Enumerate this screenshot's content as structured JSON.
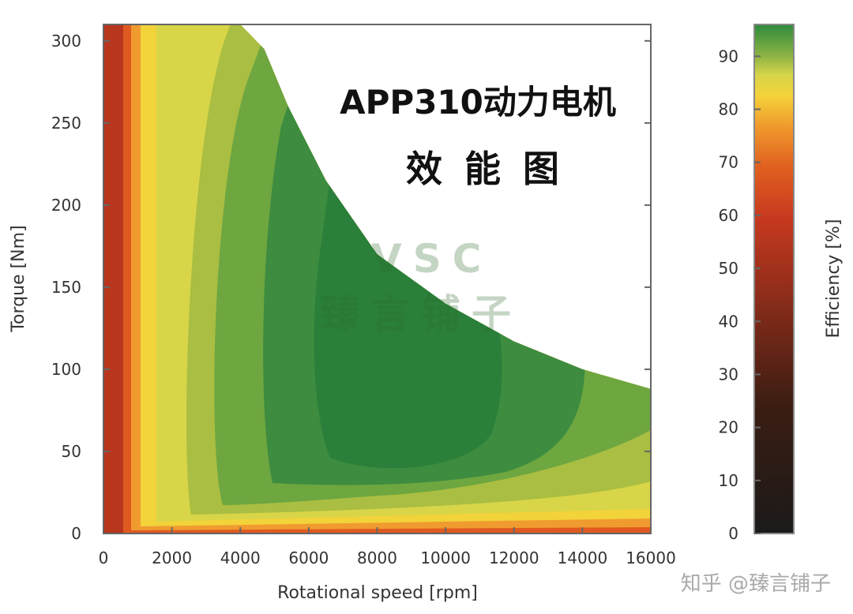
{
  "chart_data": {
    "type": "heatmap",
    "title_line1": "APP310动力电机",
    "title_line2": "效能图",
    "xlabel": "Rotational speed [rpm]",
    "ylabel": "Torque [Nm]",
    "xlim": [
      0,
      16000
    ],
    "ylim": [
      0,
      310
    ],
    "xticks": [
      "0",
      "2000",
      "4000",
      "6000",
      "8000",
      "10000",
      "12000",
      "14000",
      "16000"
    ],
    "yticks": [
      "0",
      "50",
      "100",
      "150",
      "200",
      "250",
      "300"
    ],
    "colorbar": {
      "label": "Efficiency [%]",
      "range": [
        0,
        96
      ],
      "ticks": [
        "0",
        "10",
        "20",
        "30",
        "40",
        "50",
        "60",
        "70",
        "80",
        "90"
      ]
    },
    "torque_envelope": {
      "rpm": [
        0,
        4000,
        4700,
        5400,
        6500,
        8000,
        10000,
        12000,
        14000,
        16000
      ],
      "torque": [
        310,
        310,
        295,
        260,
        215,
        170,
        140,
        117,
        100,
        88
      ]
    },
    "efficiency_levels": [
      {
        "efficiency_min": 60,
        "color": "#b8361c"
      },
      {
        "efficiency_min": 70,
        "color": "#df5a20"
      },
      {
        "efficiency_min": 80,
        "color": "#f09b30"
      },
      {
        "efficiency_min": 85,
        "color": "#f2d33a"
      },
      {
        "efficiency_min": 88,
        "color": "#d8d548"
      },
      {
        "efficiency_min": 90,
        "color": "#a9be42"
      },
      {
        "efficiency_min": 92,
        "color": "#6ea640"
      },
      {
        "efficiency_min": 94,
        "color": "#3d8c3f"
      },
      {
        "efficiency_min": 95,
        "color": "#2a7f3a"
      }
    ],
    "watermark": "VSC",
    "watermark_cn": "臻言铺子"
  },
  "credit": "知乎 @臻言铺子"
}
